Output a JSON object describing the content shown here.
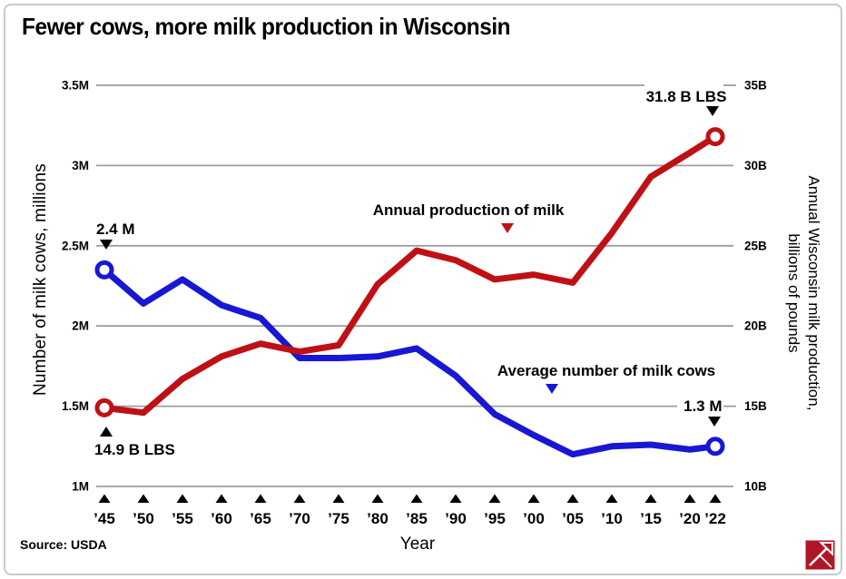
{
  "page": {
    "title": "Fewer cows, more milk production in Wisconsin",
    "source": "Source: USDA",
    "xlabel": "Year"
  },
  "colors": {
    "cows_line": "#1717d4",
    "milk_line": "#bf1016",
    "grid": "#9e9e9e",
    "text": "#000000",
    "logo_red": "#b01726"
  },
  "chart_data": {
    "type": "line",
    "title": "Fewer cows, more milk production in Wisconsin",
    "xlabel": "Year",
    "ylabel_left": "Number of milk cows, millions",
    "ylabel_right": "Annual Wisconsin milk production, billions of pounds",
    "ylabel_right_lines": [
      "Annual Wisconsin milk production,",
      "billions of pounds"
    ],
    "source": "Source: USDA",
    "grid": "horizontal-only",
    "legend_position": "inline-annotations",
    "years": [
      1945,
      1950,
      1955,
      1960,
      1965,
      1970,
      1975,
      1980,
      1985,
      1990,
      1995,
      2000,
      2005,
      2010,
      2015,
      2020,
      2022
    ],
    "x_tick_labels": [
      "’45",
      "’50",
      "’55",
      "’60",
      "’65",
      "’70",
      "’75",
      "’80",
      "’85",
      "’90",
      "’95",
      "’00",
      "’05",
      "’10",
      "’15",
      "’20",
      "’22"
    ],
    "left_axis": {
      "tick_labels": [
        "3.5M",
        "3M",
        "2.5M",
        "2M",
        "1.5M",
        "1M"
      ],
      "tick_values": [
        3.5,
        3.0,
        2.5,
        2.0,
        1.5,
        1.0
      ],
      "range": [
        1.0,
        3.5
      ]
    },
    "right_axis": {
      "tick_labels": [
        "35B",
        "30B",
        "25B",
        "20B",
        "15B",
        "10B"
      ],
      "tick_values": [
        35,
        30,
        25,
        20,
        15,
        10
      ],
      "range": [
        10,
        35
      ]
    },
    "series": [
      {
        "name": "Average number of milk cows",
        "axis": "left",
        "unit": "millions of cows",
        "color": "#1717d4",
        "values": [
          2.35,
          2.14,
          2.29,
          2.13,
          2.05,
          1.8,
          1.8,
          1.81,
          1.86,
          1.69,
          1.45,
          1.32,
          1.2,
          1.25,
          1.26,
          1.23,
          1.25
        ]
      },
      {
        "name": "Annual production of milk",
        "axis": "right",
        "unit": "billions of pounds",
        "color": "#bf1016",
        "values": [
          14.9,
          14.6,
          16.7,
          18.1,
          18.9,
          18.4,
          18.8,
          22.6,
          24.7,
          24.1,
          22.9,
          23.2,
          22.7,
          25.8,
          29.3,
          30.8,
          31.8
        ]
      }
    ],
    "annotations": [
      {
        "id": "cows-start",
        "text": "2.4 M",
        "arrow": "down",
        "arrow_color": "#000000"
      },
      {
        "id": "milk-start",
        "text": "14.9 B LBS",
        "arrow": "up",
        "arrow_color": "#000000"
      },
      {
        "id": "milk-series-label",
        "text": "Annual production of milk",
        "arrow": "down",
        "arrow_color": "#bf1016"
      },
      {
        "id": "cows-series-label",
        "text": "Average number of milk cows",
        "arrow": "down",
        "arrow_color": "#1717d4"
      },
      {
        "id": "milk-end",
        "text": "31.8 B LBS",
        "arrow": "down",
        "arrow_color": "#000000"
      },
      {
        "id": "cows-end",
        "text": "1.3 M",
        "arrow": "down",
        "arrow_color": "#000000"
      }
    ]
  }
}
